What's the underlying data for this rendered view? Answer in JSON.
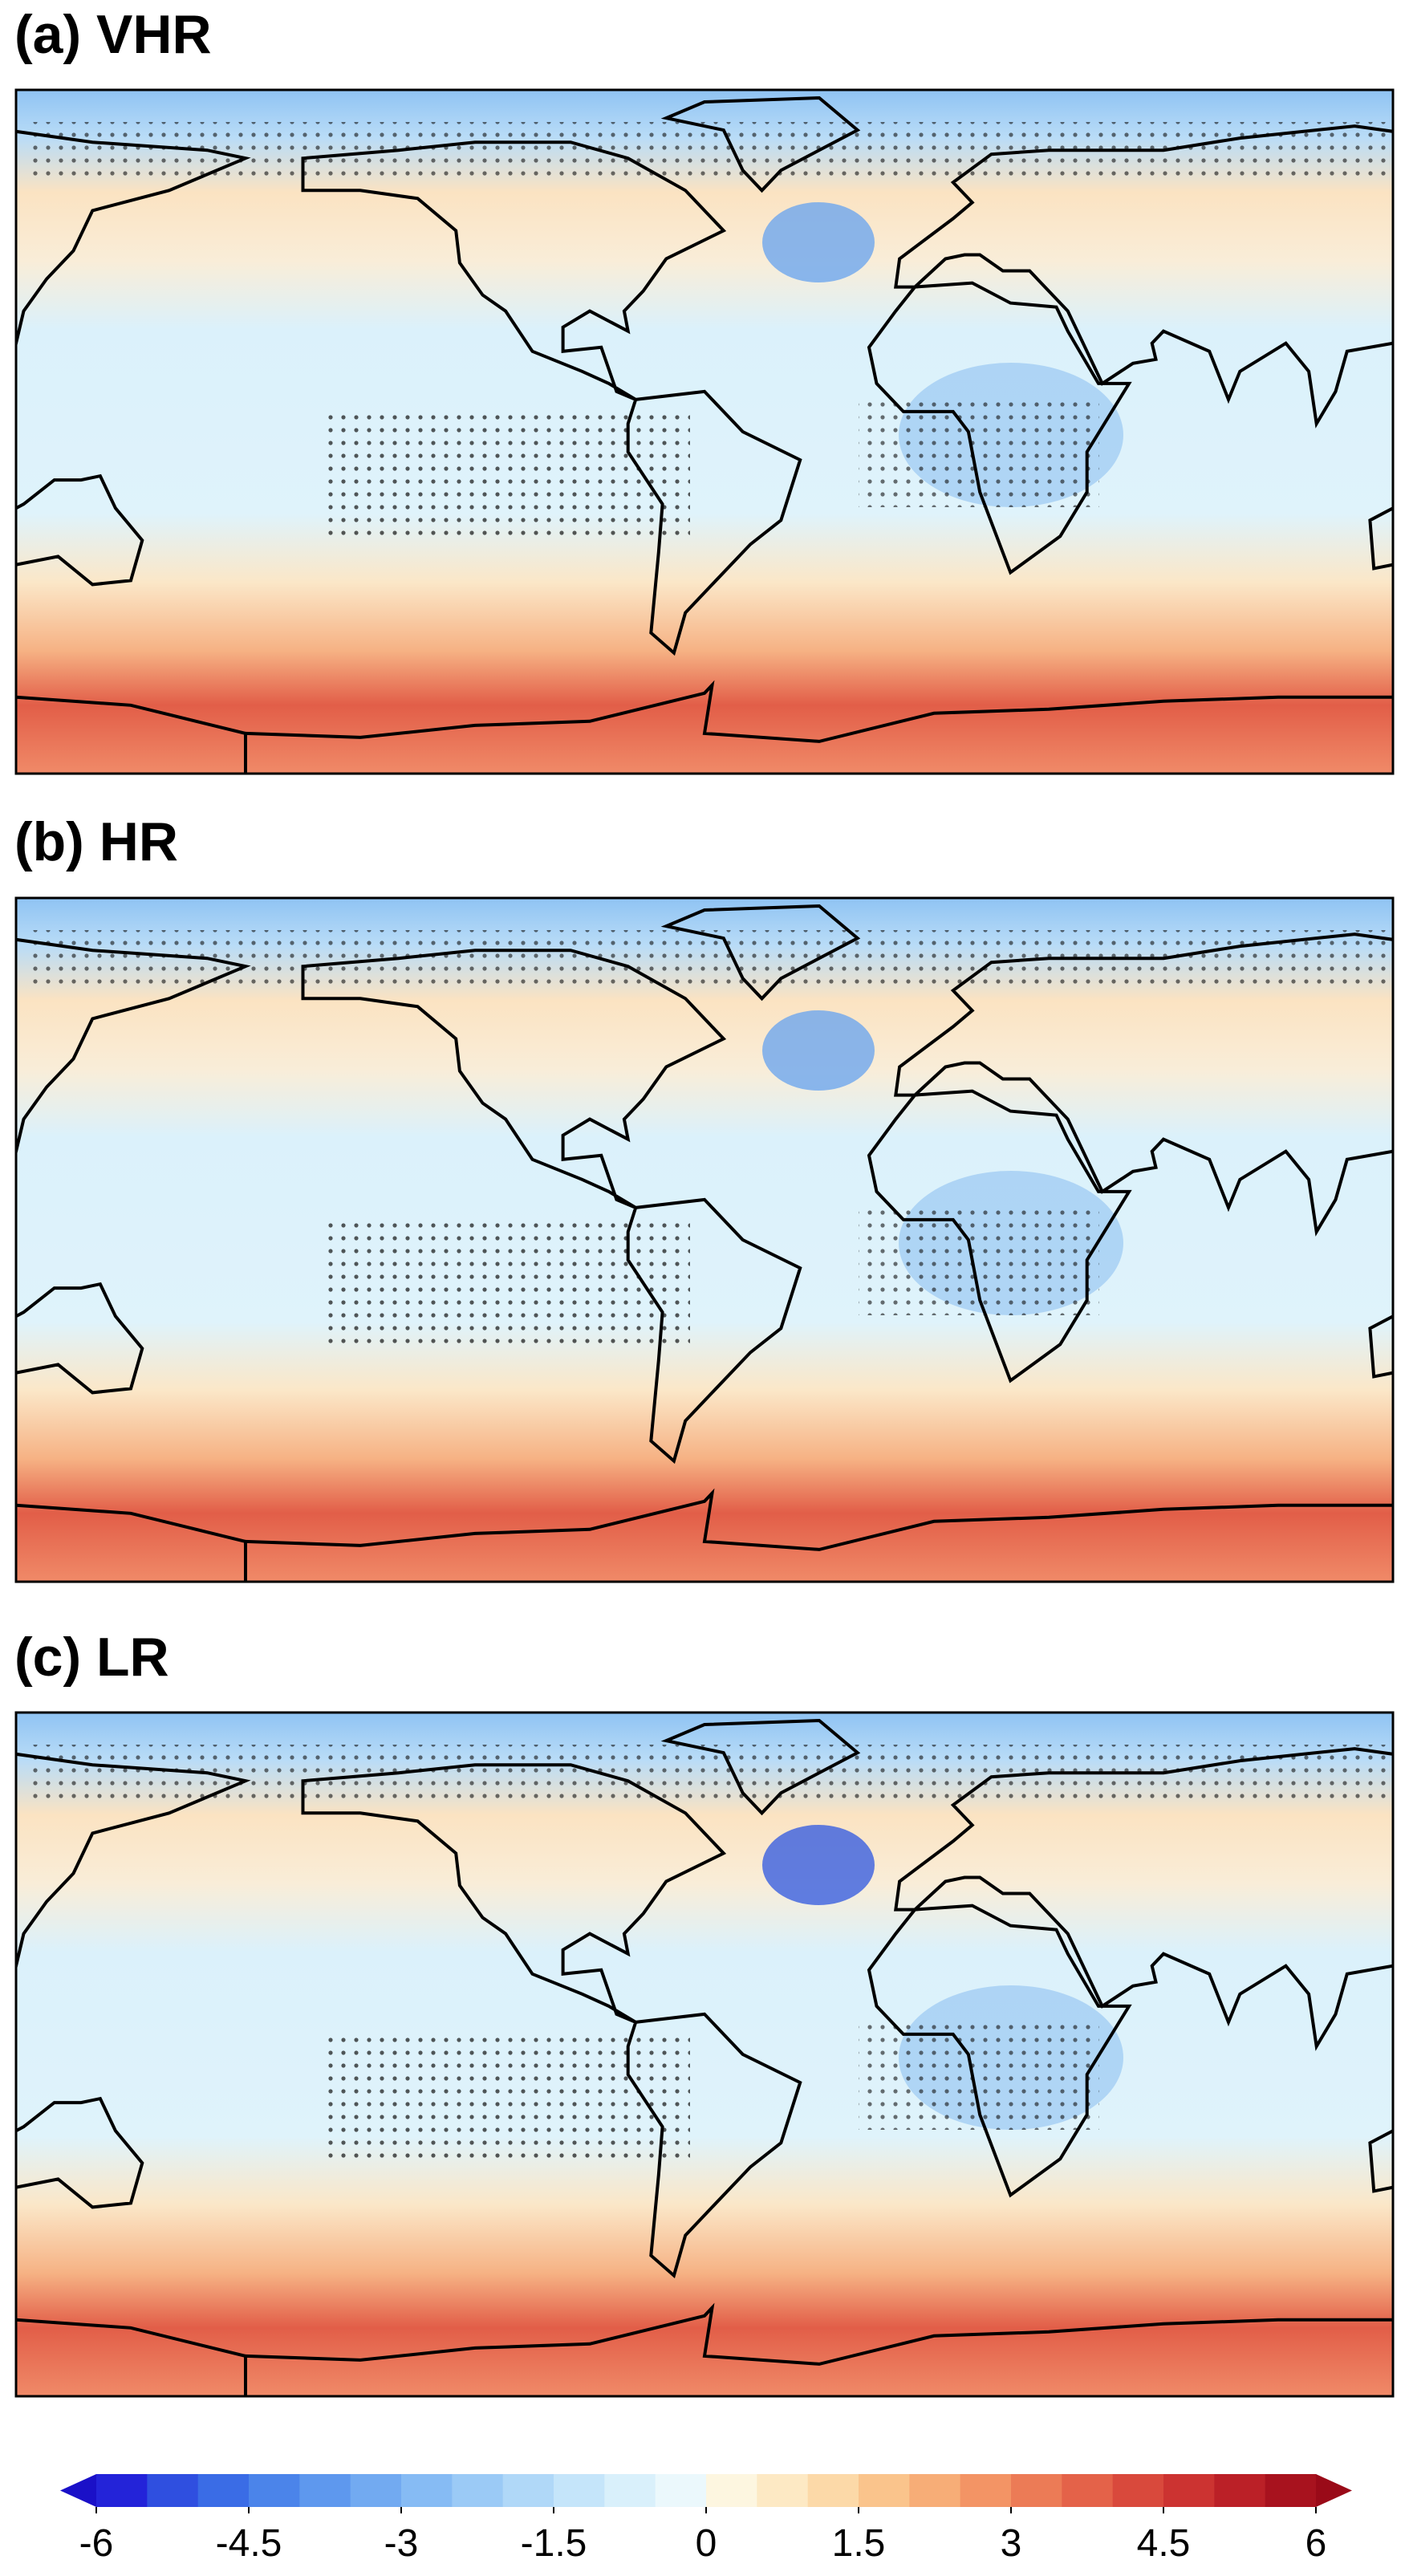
{
  "panels": [
    {
      "title": "(a) VHR"
    },
    {
      "title": "(b) HR"
    },
    {
      "title": "(c) LR"
    }
  ],
  "colorbar": {
    "lim": [
      -6,
      6
    ],
    "ticks": [
      -6,
      -4.5,
      -3,
      -1.5,
      0,
      1.5,
      3,
      4.5,
      6
    ],
    "colors": [
      "#2323d9",
      "#2f4fe0",
      "#3a6ce6",
      "#4b84ea",
      "#5e98ee",
      "#72aaf1",
      "#86bbf4",
      "#9bcaf6",
      "#b0d8f8",
      "#c5e5fa",
      "#d9f0fb",
      "#ebf8fc",
      "#fdf6e0",
      "#fde9c4",
      "#fcd9a8",
      "#fac48c",
      "#f7ad77",
      "#f39465",
      "#ec7b56",
      "#e46249",
      "#d9493c",
      "#cc3331",
      "#bb2027",
      "#a8121e"
    ],
    "under_color": "#1a10c8",
    "over_color": "#9a0a18"
  }
}
